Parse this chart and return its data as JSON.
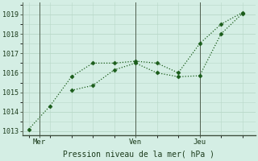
{
  "line1_x": [
    0,
    1,
    2,
    3,
    4,
    5,
    6,
    7,
    8,
    9,
    10
  ],
  "line1_y": [
    1013.1,
    1014.3,
    1015.8,
    1016.5,
    1016.5,
    1016.6,
    1016.5,
    1016.0,
    1017.5,
    1018.5,
    1019.1
  ],
  "line2_x": [
    2,
    3,
    4,
    5,
    6,
    7,
    8,
    9,
    10
  ],
  "line2_y": [
    1015.1,
    1015.35,
    1016.15,
    1016.5,
    1016.0,
    1015.8,
    1015.85,
    1018.0,
    1019.05
  ],
  "line_color": "#1a5c1a",
  "bg_color": "#d4eee4",
  "grid_color": "#b8d8c8",
  "xlabel": "Pression niveau de la mer( hPa )",
  "xtick_positions": [
    0.5,
    5.0,
    8.0
  ],
  "xtick_labels": [
    "Mer",
    "Ven",
    "Jeu"
  ],
  "vline_positions": [
    0.5,
    5.0,
    8.0
  ],
  "ylim": [
    1012.8,
    1019.6
  ],
  "xlim": [
    -0.3,
    10.6
  ],
  "ytick_vals": [
    1013,
    1014,
    1015,
    1016,
    1017,
    1018,
    1019
  ]
}
